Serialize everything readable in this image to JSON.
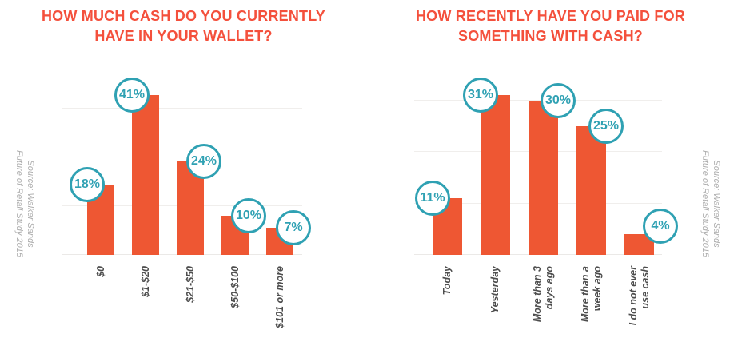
{
  "colors": {
    "bar": "#ee5733",
    "title": "#f4503c",
    "badge_teal": "#2fa1b3",
    "gridline": "#f0eeec",
    "category_label": "#4d4d4d",
    "source_text": "#adadad",
    "background": "#ffffff"
  },
  "source_note": {
    "line1": "Source: Walker Sands",
    "line2": "Future of Retail Study 2015"
  },
  "chart_data": [
    {
      "type": "bar",
      "title": "HOW MUCH CASH DO YOU CURRENTLY HAVE IN YOUR WALLET?",
      "title_lines": [
        "HOW MUCH CASH DO YOU CURRENTLY",
        "HAVE IN YOUR WALLET?"
      ],
      "categories": [
        "$0",
        "$1-$20",
        "$21-$50",
        "$50-$100",
        "$101 or more"
      ],
      "values": [
        18,
        41,
        24,
        10,
        7
      ],
      "value_labels": [
        "18%",
        "41%",
        "24%",
        "10%",
        "7%"
      ],
      "unit": "%",
      "ylim": [
        0,
        50
      ],
      "gridline_values": [
        12.5,
        25,
        37.5
      ],
      "badge_side": [
        "left",
        "left",
        "right",
        "right",
        "right"
      ],
      "grid": true,
      "legend": "none",
      "xlabel": "",
      "ylabel": ""
    },
    {
      "type": "bar",
      "title": "HOW RECENTLY HAVE YOU PAID FOR SOMETHING WITH CASH?",
      "title_lines": [
        "HOW RECENTLY HAVE YOU PAID FOR",
        "SOMETHING WITH CASH?"
      ],
      "categories": [
        "Today",
        "Yesterday",
        "More than 3\ndays ago",
        "More than a\nweek ago",
        "I do not ever\nuse cash"
      ],
      "values": [
        11,
        31,
        30,
        25,
        4
      ],
      "value_labels": [
        "11%",
        "31%",
        "30%",
        "25%",
        "4%"
      ],
      "unit": "%",
      "ylim": [
        0,
        40
      ],
      "gridline_values": [
        10,
        20,
        30
      ],
      "badge_side": [
        "left",
        "left",
        "right",
        "right",
        "right"
      ],
      "grid": true,
      "legend": "none",
      "xlabel": "",
      "ylabel": ""
    }
  ]
}
